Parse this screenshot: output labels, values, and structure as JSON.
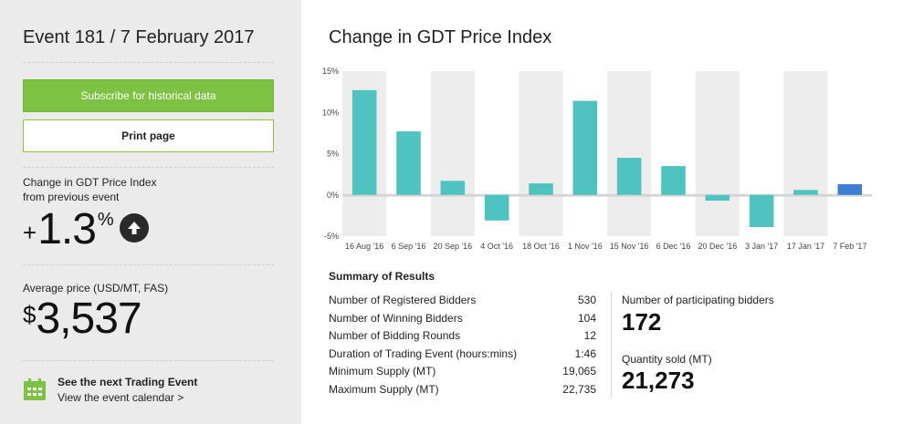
{
  "event": {
    "title": "Event 181 / 7 February 2017"
  },
  "buttons": {
    "subscribe": "Subscribe for historical data",
    "print": "Print page"
  },
  "change": {
    "label_line1": "Change in GDT Price Index",
    "label_line2": "from previous event",
    "sign": "+",
    "value": "1.3",
    "unit": "%",
    "direction_icon": "arrow-up-icon"
  },
  "average": {
    "label": "Average price (USD/MT, FAS)",
    "currency": "$",
    "value": "3,537"
  },
  "next_event": {
    "title": "See the next Trading Event",
    "link": "View the event calendar >",
    "icon": "calendar-icon"
  },
  "colors": {
    "green": "#7dc242",
    "bar": "#4fc3bf",
    "bar_highlight": "#3d7fd1",
    "panel_bg": "#ebebeb"
  },
  "chart_data": {
    "type": "bar",
    "title": "Change in GDT Price Index",
    "categories": [
      "16 Aug '16",
      "6 Sep '16",
      "20 Sep '16",
      "4 Oct '16",
      "18 Oct '16",
      "1 Nov '16",
      "15 Nov '16",
      "6 Dec '16",
      "20 Dec '16",
      "3 Jan '17",
      "17 Jan '17",
      "7 Feb '17"
    ],
    "values": [
      12.7,
      7.7,
      1.7,
      -3.1,
      1.4,
      11.4,
      4.5,
      3.5,
      -0.7,
      -3.9,
      0.6,
      1.3
    ],
    "highlight_index": 11,
    "y_ticks": [
      "15%",
      "10%",
      "5%",
      "0%",
      "-5%"
    ],
    "y_tick_values": [
      15,
      10,
      5,
      0,
      -5
    ],
    "ylim": [
      -5,
      15
    ],
    "grid": true
  },
  "summary": {
    "title": "Summary of Results",
    "rows": [
      {
        "label": "Number of Registered Bidders",
        "value": "530"
      },
      {
        "label": "Number of Winning Bidders",
        "value": "104"
      },
      {
        "label": "Number of Bidding Rounds",
        "value": "12"
      },
      {
        "label": "Duration of Trading Event (hours:mins)",
        "value": "1:46"
      },
      {
        "label": "Minimum Supply (MT)",
        "value": "19,065"
      },
      {
        "label": "Maximum Supply (MT)",
        "value": "22,735"
      }
    ],
    "participating_label": "Number of participating bidders",
    "participating_value": "172",
    "quantity_label": "Quantity sold (MT)",
    "quantity_value": "21,273"
  }
}
